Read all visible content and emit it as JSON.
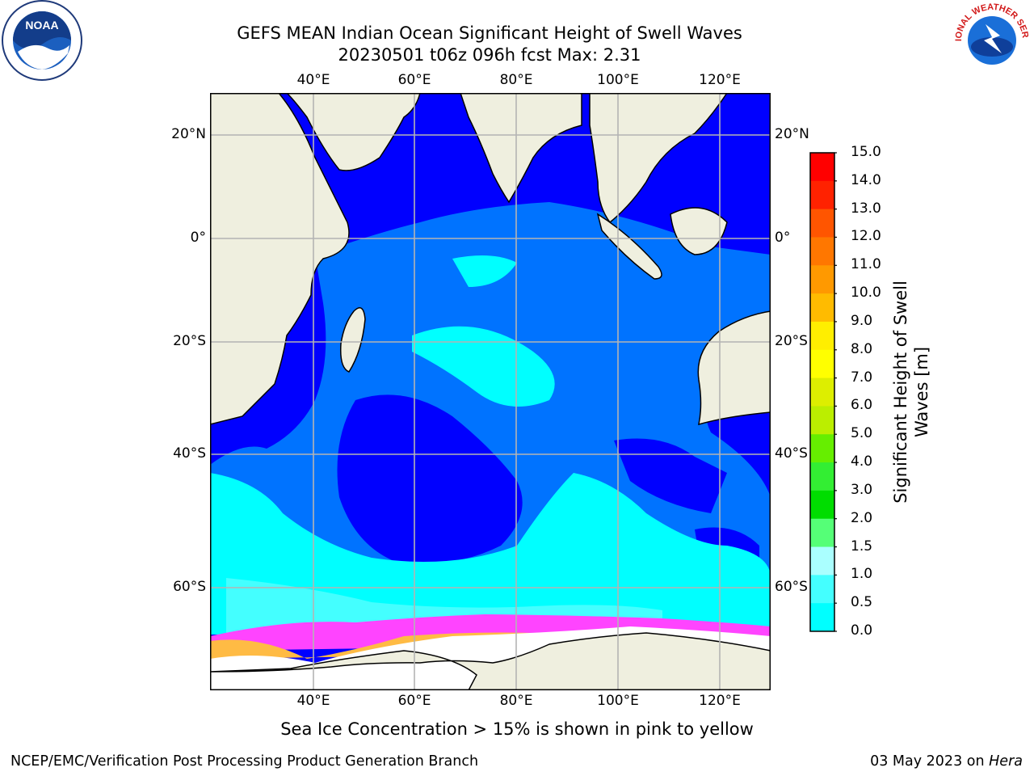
{
  "title": {
    "line1": "GEFS MEAN Indian Ocean Significant Height of Swell Waves",
    "line2": "20230501 t06z 096h fcst   Max: 2.31"
  },
  "map": {
    "lon_labels": [
      "40°E",
      "60°E",
      "80°E",
      "100°E",
      "120°E"
    ],
    "lat_labels": [
      "20°N",
      "0°",
      "20°S",
      "40°S",
      "60°S"
    ],
    "colors": {
      "land": "#efefdf",
      "ice_mask": "#ffffff",
      "deep_blue": "#0000ff",
      "mid_blue": "#0073ff",
      "cyan": "#00ffff",
      "light_cyan": "#44ffff",
      "ice_pink": "#ff44ff",
      "ice_yellow": "#ffbb44"
    }
  },
  "colorbar": {
    "label_line1": "Significant Height of Swell",
    "label_line2": "Waves [m]",
    "ticks": [
      "15.0",
      "14.0",
      "13.0",
      "12.0",
      "11.0",
      "10.0",
      "9.0",
      "8.0",
      "7.0",
      "6.0",
      "5.0",
      "4.0",
      "3.0",
      "2.0",
      "1.5",
      "1.0",
      "0.5",
      "0.0"
    ],
    "colors_top_to_bottom": [
      "#ff0000",
      "#ff2200",
      "#ff5500",
      "#ff7700",
      "#ff9900",
      "#ffbb00",
      "#ffee00",
      "#ffff00",
      "#ddee00",
      "#bbee00",
      "#66ee00",
      "#33ee33",
      "#00dd00",
      "#55ff77",
      "#aaffff",
      "#44ffff",
      "#00ffff",
      "#0077ff",
      "#0000ff"
    ]
  },
  "caption": "Sea Ice Concentration > 15% is shown in pink to yellow",
  "footer": {
    "left": "NCEP/EMC/Verification Post Processing Product Generation Branch",
    "right_prefix": "03 May 2023 on ",
    "right_host": "Hera"
  },
  "logos": {
    "noaa_text": "NOAA",
    "nws_text": "NATIONAL WEATHER SERVICE"
  }
}
